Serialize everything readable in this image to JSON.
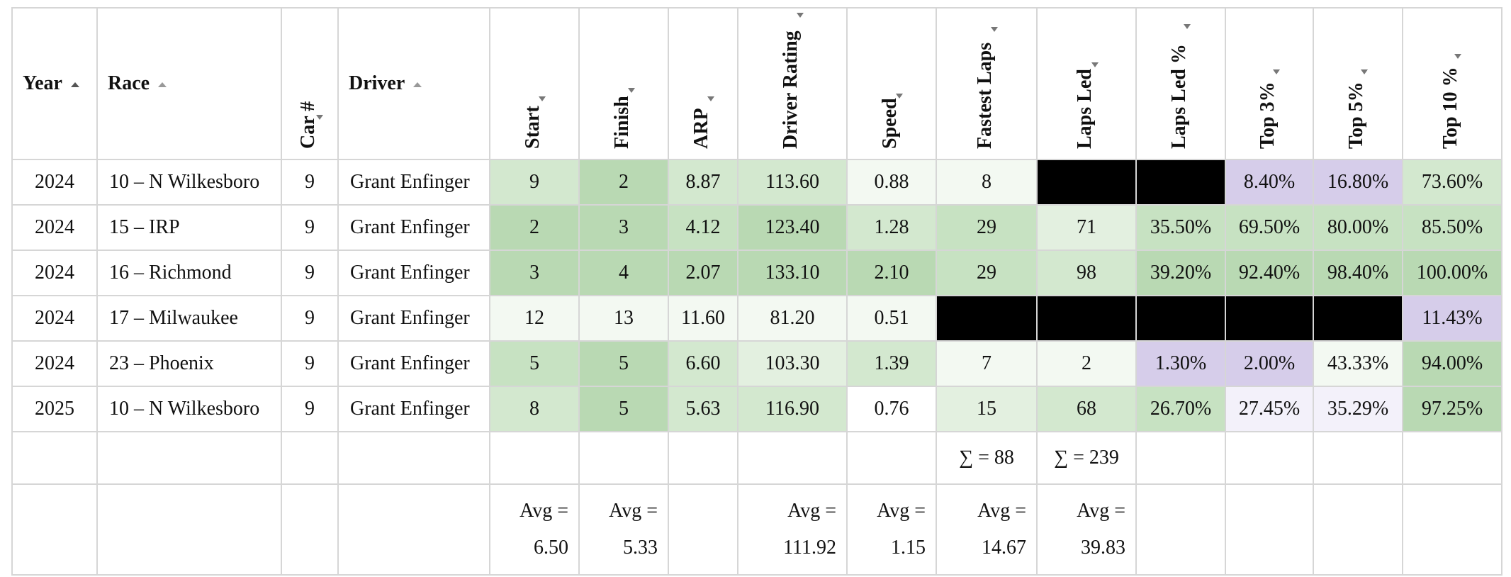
{
  "columns": [
    {
      "key": "year",
      "label": "Year",
      "orient": "h"
    },
    {
      "key": "race",
      "label": "Race",
      "orient": "h"
    },
    {
      "key": "car",
      "label": "Car #",
      "orient": "v"
    },
    {
      "key": "driver",
      "label": "Driver",
      "orient": "h"
    },
    {
      "key": "start",
      "label": "Start",
      "orient": "v"
    },
    {
      "key": "finish",
      "label": "Finish",
      "orient": "v"
    },
    {
      "key": "arp",
      "label": "ARP",
      "orient": "v"
    },
    {
      "key": "rating",
      "label": "Driver Rating",
      "orient": "v"
    },
    {
      "key": "speed",
      "label": "Speed",
      "orient": "v"
    },
    {
      "key": "fastest",
      "label": "Fastest Laps",
      "orient": "v"
    },
    {
      "key": "lapsled",
      "label": "Laps Led",
      "orient": "v"
    },
    {
      "key": "lapsledpct",
      "label": "Laps Led %",
      "orient": "v"
    },
    {
      "key": "top3",
      "label": "Top 3%",
      "orient": "v"
    },
    {
      "key": "top5",
      "label": "Top 5%",
      "orient": "v"
    },
    {
      "key": "top10",
      "label": "Top 10 %",
      "orient": "v"
    }
  ],
  "rows": [
    {
      "year": "2024",
      "race": "10 – N Wilkesboro",
      "car": "9",
      "driver": "Grant Enfinger",
      "start": "9",
      "finish": "2",
      "arp": "8.87",
      "rating": "113.60",
      "speed": "0.88",
      "fastest": "8",
      "lapsled": "",
      "lapsledpct": "",
      "top3": "8.40%",
      "top5": "16.80%",
      "top10": "73.60%"
    },
    {
      "year": "2024",
      "race": "15 – IRP",
      "car": "9",
      "driver": "Grant Enfinger",
      "start": "2",
      "finish": "3",
      "arp": "4.12",
      "rating": "123.40",
      "speed": "1.28",
      "fastest": "29",
      "lapsled": "71",
      "lapsledpct": "35.50%",
      "top3": "69.50%",
      "top5": "80.00%",
      "top10": "85.50%"
    },
    {
      "year": "2024",
      "race": "16 – Richmond",
      "car": "9",
      "driver": "Grant Enfinger",
      "start": "3",
      "finish": "4",
      "arp": "2.07",
      "rating": "133.10",
      "speed": "2.10",
      "fastest": "29",
      "lapsled": "98",
      "lapsledpct": "39.20%",
      "top3": "92.40%",
      "top5": "98.40%",
      "top10": "100.00%"
    },
    {
      "year": "2024",
      "race": "17 – Milwaukee",
      "car": "9",
      "driver": "Grant Enfinger",
      "start": "12",
      "finish": "13",
      "arp": "11.60",
      "rating": "81.20",
      "speed": "0.51",
      "fastest": "",
      "lapsled": "",
      "lapsledpct": "",
      "top3": "",
      "top5": "",
      "top10": "11.43%"
    },
    {
      "year": "2024",
      "race": "23 – Phoenix",
      "car": "9",
      "driver": "Grant Enfinger",
      "start": "5",
      "finish": "5",
      "arp": "6.60",
      "rating": "103.30",
      "speed": "1.39",
      "fastest": "7",
      "lapsled": "2",
      "lapsledpct": "1.30%",
      "top3": "2.00%",
      "top5": "43.33%",
      "top10": "94.00%"
    },
    {
      "year": "2025",
      "race": "10 – N Wilkesboro",
      "car": "9",
      "driver": "Grant Enfinger",
      "start": "8",
      "finish": "5",
      "arp": "5.63",
      "rating": "116.90",
      "speed": "0.76",
      "fastest": "15",
      "lapsled": "68",
      "lapsledpct": "26.70%",
      "top3": "27.45%",
      "top5": "35.29%",
      "top10": "97.25%"
    }
  ],
  "cell_colors": {
    "black": "#000000",
    "purple": "#d6cdea",
    "purple_light": "#f3f1fa",
    "green_darkest": "#b9d9b3",
    "green_light": "#f3f9f2"
  },
  "sums": {
    "fastest": "∑ = 88",
    "lapsled": "∑ = 239"
  },
  "averages": {
    "start": {
      "label": "Avg =",
      "value": "6.50"
    },
    "finish": {
      "label": "Avg =",
      "value": "5.33"
    },
    "rating": {
      "label": "Avg =",
      "value": "111.92"
    },
    "speed": {
      "label": "Avg =",
      "value": "1.15"
    },
    "fastest": {
      "label": "Avg =",
      "value": "14.67"
    },
    "lapsled": {
      "label": "Avg =",
      "value": "39.83"
    }
  }
}
